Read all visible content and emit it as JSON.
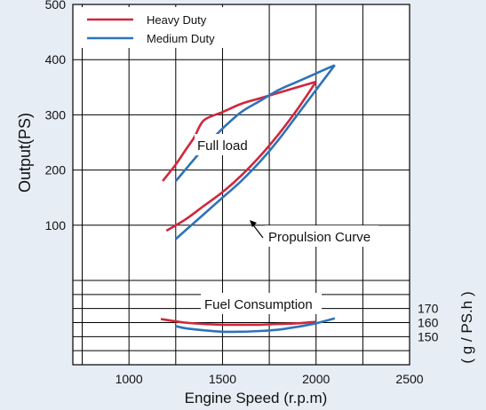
{
  "chart_data": {
    "type": "line",
    "xlabel": "Engine Speed (r.p.m)",
    "ylabel": "Output(PS)",
    "y2label": "( g / PS.h )",
    "x_ticks": [
      "1000",
      "1500",
      "2000",
      "2500"
    ],
    "x_tick_values": [
      1000,
      1500,
      2000,
      2500
    ],
    "xlim": [
      700,
      2500
    ],
    "ylim": [
      0,
      500
    ],
    "y_ticks": [
      "100",
      "200",
      "300",
      "400",
      "500"
    ],
    "y_tick_values": [
      100,
      200,
      300,
      400,
      500
    ],
    "fuel_ylim": [
      130,
      190
    ],
    "fuel_ticks": [
      "150",
      "160",
      "170"
    ],
    "fuel_tick_values": [
      150,
      160,
      170
    ],
    "grid": true,
    "legend_position": "top-left",
    "legend": [
      {
        "label": "Heavy Duty",
        "color": "#d0273b"
      },
      {
        "label": "Medium Duty",
        "color": "#2d73b9"
      }
    ],
    "annotations": {
      "full_load": "Full load",
      "propulsion": "Propulsion Curve",
      "fuel": "Fuel Consumption"
    },
    "series": [
      {
        "name": "Heavy Duty",
        "color": "#d0273b",
        "full_load": {
          "x": [
            1180,
            1250,
            1300,
            1350,
            1400,
            1500,
            1600,
            1700,
            1800,
            1900,
            2000
          ],
          "y": [
            180,
            210,
            235,
            260,
            290,
            305,
            320,
            330,
            340,
            350,
            360
          ]
        },
        "propulsion": {
          "x": [
            1200,
            1300,
            1400,
            1500,
            1600,
            1700,
            1800,
            1900,
            2000
          ],
          "y": [
            90,
            110,
            135,
            160,
            190,
            225,
            265,
            310,
            360
          ]
        },
        "fuel": {
          "x": [
            1170,
            1300,
            1400,
            1500,
            1600,
            1700,
            1800,
            1900,
            2000
          ],
          "y": [
            162.5,
            160,
            159,
            158.5,
            158.5,
            158.5,
            159,
            159.5,
            160.5
          ]
        }
      },
      {
        "name": "Medium Duty",
        "color": "#2d73b9",
        "full_load": {
          "x": [
            1250,
            1300,
            1400,
            1500,
            1600,
            1700,
            1800,
            1900,
            2000,
            2100
          ],
          "y": [
            180,
            200,
            240,
            275,
            305,
            325,
            345,
            360,
            375,
            390
          ]
        },
        "propulsion": {
          "x": [
            1250,
            1300,
            1400,
            1500,
            1600,
            1700,
            1800,
            1900,
            2000,
            2100
          ],
          "y": [
            75,
            90,
            120,
            150,
            180,
            215,
            255,
            300,
            345,
            390
          ]
        },
        "fuel": {
          "x": [
            1250,
            1300,
            1400,
            1500,
            1600,
            1700,
            1800,
            1900,
            2000,
            2100
          ],
          "y": [
            157.5,
            156,
            154.5,
            153.5,
            153.5,
            154,
            155,
            157,
            159.5,
            163
          ]
        }
      }
    ]
  }
}
